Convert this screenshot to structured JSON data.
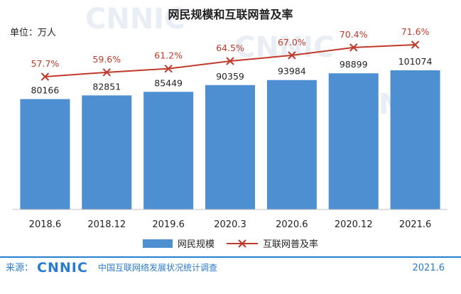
{
  "chart_data": {
    "type": "bar",
    "title": "网民规模和互联网普及率",
    "unit_label": "单位：万人",
    "categories": [
      "2018.6",
      "2018.12",
      "2019.6",
      "2020.3",
      "2020.6",
      "2020.12",
      "2021.6"
    ],
    "series": [
      {
        "name": "网民规模",
        "type": "bar",
        "values": [
          80166,
          82851,
          85449,
          90359,
          93984,
          98899,
          101074
        ],
        "color": "#4e8fd2"
      },
      {
        "name": "互联网普及率",
        "type": "line",
        "values": [
          57.7,
          59.6,
          61.2,
          64.5,
          67.0,
          70.4,
          71.6
        ],
        "labels": [
          "57.7%",
          "59.6%",
          "61.2%",
          "64.5%",
          "67.0%",
          "70.4%",
          "71.6%"
        ],
        "color": "#c0392b"
      }
    ],
    "bar_value_labels": [
      "80166",
      "82851",
      "85449",
      "90359",
      "93984",
      "98899",
      "101074"
    ],
    "legend_position": "bottom",
    "grid": false
  },
  "footer": {
    "source_label": "来源：",
    "logo_text": "CNNIC",
    "logo_subtitle": "中国互联网络发展状况统计调查",
    "date": "2021.6"
  },
  "colors": {
    "bar": "#4e8fd2",
    "line": "#c0392b",
    "footer": "#2b7bd0"
  }
}
